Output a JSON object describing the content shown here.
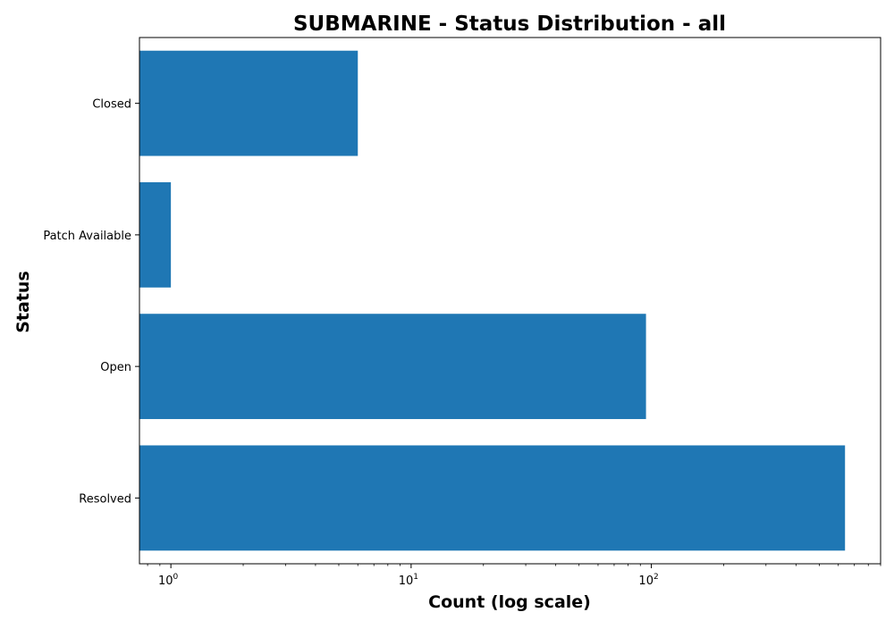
{
  "chart_data": {
    "type": "bar",
    "orientation": "horizontal",
    "title": "SUBMARINE - Status Distribution - all",
    "xlabel": "Count (log scale)",
    "ylabel": "Status",
    "x_scale": "log",
    "xlim": [
      0.74,
      900
    ],
    "categories": [
      "Closed",
      "Patch Available",
      "Open",
      "Resolved"
    ],
    "values": [
      6,
      1,
      95,
      640
    ],
    "x_ticks": [
      {
        "value": 1,
        "base": "10",
        "exp": "0"
      },
      {
        "value": 10,
        "base": "10",
        "exp": "1"
      },
      {
        "value": 100,
        "base": "10",
        "exp": "2"
      }
    ],
    "bar_color": "#1f77b4",
    "grid": false,
    "legend": false
  }
}
